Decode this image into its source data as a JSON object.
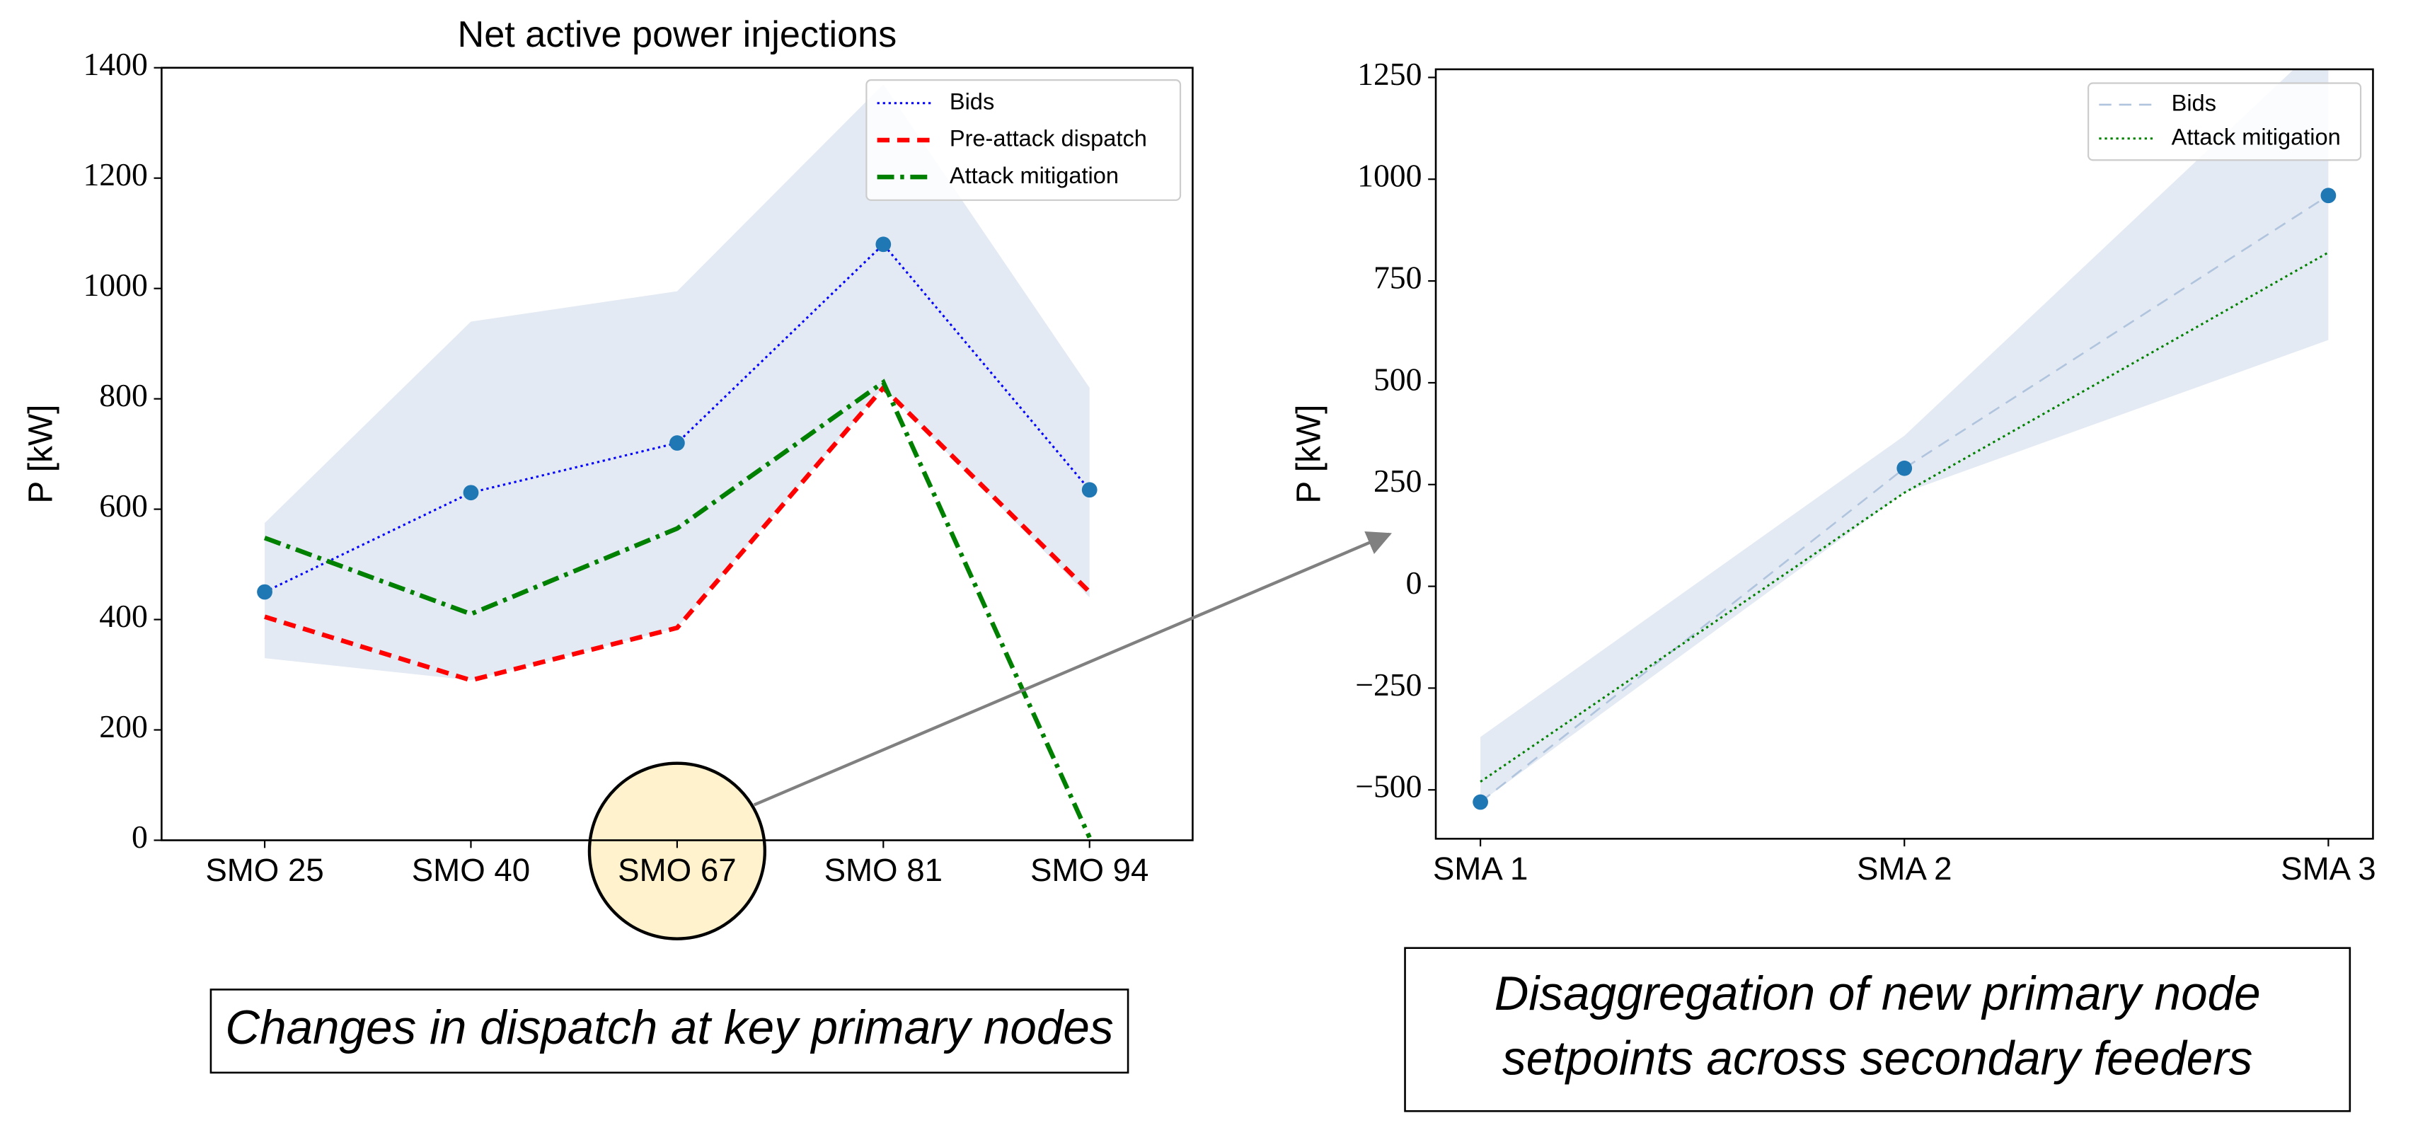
{
  "chart_data": [
    {
      "type": "line",
      "title": "Net active power injections",
      "ylabel": "P [kW]",
      "categories": [
        "SMO 25",
        "SMO 40",
        "SMO 67",
        "SMO 81",
        "SMO 94"
      ],
      "ylim": [
        0,
        1400
      ],
      "yticks": [
        0,
        200,
        400,
        600,
        800,
        1000,
        1200,
        1400
      ],
      "band": {
        "color": "#e3eaf3",
        "upper": [
          575,
          940,
          995,
          1370,
          820
        ],
        "lower": [
          330,
          290,
          385,
          820,
          440
        ]
      },
      "series": [
        {
          "name": "Bids",
          "color": "#0000ff",
          "linestyle": "dotted",
          "linewidth": 1.4,
          "marker_color": "#1f77b4",
          "values": [
            450,
            630,
            720,
            1080,
            635
          ]
        },
        {
          "name": "Pre-attack dispatch",
          "color": "#ff0000",
          "linestyle": "dashed",
          "linewidth": 3,
          "values": [
            405,
            290,
            385,
            820,
            450
          ]
        },
        {
          "name": "Attack mitigation",
          "color": "#008000",
          "linestyle": "dashdot",
          "linewidth": 3,
          "values": [
            548,
            410,
            565,
            830,
            5
          ]
        }
      ],
      "legend": "upper right"
    },
    {
      "type": "line",
      "ylabel": "P [kW]",
      "categories": [
        "SMA 1",
        "SMA 2",
        "SMA 3"
      ],
      "ylim": [
        -620,
        1270
      ],
      "yticks": [
        {
          "value": -500,
          "label": "−500"
        },
        {
          "value": -250,
          "label": "−250"
        },
        0,
        250,
        500,
        750,
        1000,
        1250
      ],
      "band": {
        "color": "#e3eaf3",
        "upper": [
          -370,
          370,
          1350
        ],
        "lower": [
          -530,
          230,
          605
        ]
      },
      "series": [
        {
          "name": "Bids",
          "color": "#b0c4de",
          "linestyle": "dashed",
          "linewidth": 1.2,
          "marker_color": "#1f77b4",
          "values": [
            -530,
            290,
            960
          ]
        },
        {
          "name": "Attack mitigation",
          "color": "#008000",
          "linestyle": "dotted",
          "linewidth": 1.4,
          "values": [
            -480,
            230,
            820
          ]
        }
      ],
      "legend": "upper right"
    }
  ],
  "annotations": {
    "left": "Changes in dispatch at key primary nodes",
    "right": [
      "Disaggregation of new primary node",
      "setpoints across secondary feeders"
    ]
  }
}
